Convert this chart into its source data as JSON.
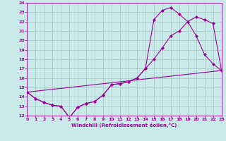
{
  "xlabel": "Windchill (Refroidissement éolien,°C)",
  "xlim": [
    0,
    23
  ],
  "ylim": [
    12,
    24
  ],
  "background_color": "#caeaea",
  "grid_color": "#9ab8b8",
  "line_color": "#990099",
  "line1_x": [
    0,
    1,
    2,
    3,
    4,
    5,
    6,
    7,
    8,
    9,
    10,
    11,
    12,
    13,
    14,
    15,
    16,
    17,
    18,
    19,
    20,
    21,
    22,
    23
  ],
  "line1_y": [
    14.5,
    13.8,
    13.4,
    13.1,
    13.0,
    11.8,
    12.9,
    13.3,
    13.5,
    14.2,
    15.3,
    15.4,
    15.6,
    16.0,
    17.0,
    18.0,
    19.2,
    20.5,
    21.0,
    22.0,
    22.5,
    22.2,
    21.8,
    16.8
  ],
  "line2_x": [
    0,
    1,
    2,
    3,
    4,
    5,
    6,
    7,
    8,
    9,
    10,
    11,
    12,
    13,
    14,
    15,
    16,
    17,
    18,
    19,
    20,
    21,
    22,
    23
  ],
  "line2_y": [
    14.5,
    13.8,
    13.4,
    13.1,
    13.0,
    11.8,
    12.9,
    13.3,
    13.5,
    14.2,
    15.3,
    15.4,
    15.6,
    16.0,
    17.0,
    22.2,
    23.2,
    23.5,
    22.8,
    22.0,
    20.5,
    18.5,
    17.5,
    16.8
  ],
  "line3_x": [
    0,
    23
  ],
  "line3_y": [
    14.5,
    16.8
  ],
  "xtick_labels": [
    "0",
    "1",
    "2",
    "3",
    "4",
    "5",
    "6",
    "7",
    "8",
    "9",
    "10",
    "11",
    "12",
    "13",
    "14",
    "15",
    "16",
    "17",
    "18",
    "19",
    "20",
    "21",
    "22",
    "23"
  ],
  "xticks": [
    0,
    1,
    2,
    3,
    4,
    5,
    6,
    7,
    8,
    9,
    10,
    11,
    12,
    13,
    14,
    15,
    16,
    17,
    18,
    19,
    20,
    21,
    22,
    23
  ],
  "yticks": [
    12,
    13,
    14,
    15,
    16,
    17,
    18,
    19,
    20,
    21,
    22,
    23,
    24
  ]
}
